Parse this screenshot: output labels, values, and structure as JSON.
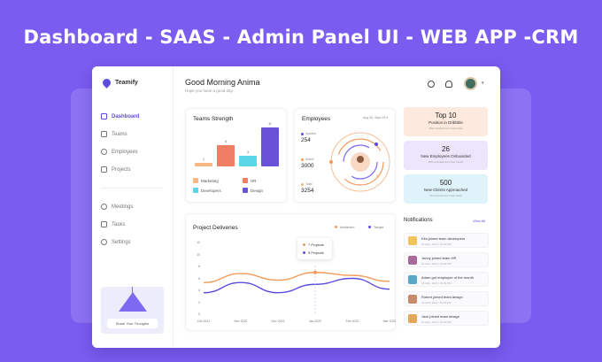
{
  "headline": "Dashboard - SAAS - Admin Panel UI - WEB APP -CRM",
  "app": {
    "name": "Teamify"
  },
  "sidebar": {
    "items": [
      {
        "label": "Dashboard",
        "icon": "grid-icon"
      },
      {
        "label": "Teams",
        "icon": "command-icon"
      },
      {
        "label": "Employees",
        "icon": "users-icon"
      },
      {
        "label": "Projects",
        "icon": "briefcase-icon"
      },
      {
        "label": "Meetings",
        "icon": "phone-icon"
      },
      {
        "label": "Tasks",
        "icon": "clipboard-icon"
      },
      {
        "label": "Settings",
        "icon": "gear-icon"
      }
    ],
    "promo_button": "Share Your Thoughts"
  },
  "header": {
    "greeting": "Good Morning Anima",
    "subtitle": "Hope you have a good day"
  },
  "teams_strength": {
    "title": "Teams Strength",
    "chart_data": {
      "type": "bar",
      "categories": [
        "Marketing",
        "HR",
        "Developers",
        "Design"
      ],
      "values": [
        1,
        6,
        3,
        11
      ],
      "ylim": [
        0,
        12
      ]
    },
    "colors": [
      "#f6b783",
      "#ef7d63",
      "#5ad6e8",
      "#6a52d8"
    ]
  },
  "employees": {
    "title": "Employees",
    "range": "Aug 26- Sept 25",
    "stats": [
      {
        "label": "Inactive",
        "value": "254",
        "color": "#5b4ce0"
      },
      {
        "label": "Active",
        "value": "3000",
        "color": "#f49a5b"
      },
      {
        "label": "Total",
        "value": "3254",
        "color": "#f6b783"
      }
    ]
  },
  "stat_cards": [
    {
      "value": "Top 10",
      "label": "Position in Dribbble",
      "sub": "20% increase from last week",
      "bg": "#fde9dd"
    },
    {
      "value": "26",
      "label": "New Employees Onboarded",
      "sub": "15% increase from last month",
      "bg": "#ebe6fb"
    },
    {
      "value": "500",
      "label": "New Clients Approached",
      "sub": "5% increase from last week",
      "bg": "#def3fa"
    }
  ],
  "deliveries": {
    "title": "Project Deliveries",
    "legend": [
      {
        "label": "Achieved",
        "color": "#f49a5b"
      },
      {
        "label": "Target",
        "color": "#5b4ce0"
      }
    ],
    "tooltip": [
      "7 Projects",
      "5 Projects"
    ],
    "chart_data": {
      "type": "line",
      "x": [
        "Oct 2021",
        "Nov 2021",
        "Dec 2021",
        "Jan 2022",
        "Feb 2022",
        "Mar 2022"
      ],
      "y_ticks": [
        0,
        2,
        4,
        6,
        8,
        10,
        12
      ],
      "ylim": [
        0,
        12
      ],
      "series": [
        {
          "name": "Achieved",
          "values": [
            5.3,
            6.8,
            5.7,
            7,
            6.5,
            5.5
          ]
        },
        {
          "name": "Target",
          "values": [
            3.6,
            5.3,
            3.6,
            5,
            6,
            4.2
          ]
        }
      ]
    }
  },
  "notifications": {
    "title": "Notifications",
    "view_all": "View All",
    "items": [
      {
        "text": "Elia joined team developers",
        "time": "04 April, 2021 | 04:00 PM",
        "color": "#f3c35b"
      },
      {
        "text": "Jenny joined team HR",
        "time": "04 April, 2021 | 04:00 PM",
        "color": "#a86a9a"
      },
      {
        "text": "Adam got employee of the month",
        "time": "03 April, 2021 | 02:00 PM",
        "color": "#5aa8c8"
      },
      {
        "text": "Robert joined team design",
        "time": "02 April, 2021 | 02:00 PM",
        "color": "#c98a6a"
      },
      {
        "text": "Jack joined team design",
        "time": "02 April, 2021 | 02:00 PM",
        "color": "#e3a85a"
      }
    ]
  }
}
